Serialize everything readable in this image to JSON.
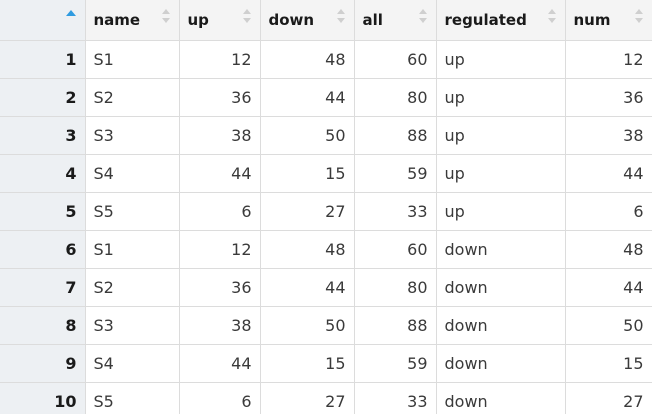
{
  "columns": [
    "name",
    "up",
    "down",
    "all",
    "regulated",
    "num"
  ],
  "sort": {
    "column": "row-index",
    "direction": "ascending"
  },
  "colors": {
    "sort_active": "#2f9be0",
    "header_bg": "#f4f4f4",
    "rownum_bg": "#edf0f3"
  },
  "rows": [
    {
      "idx": "1",
      "name": "S1",
      "up": "12",
      "down": "48",
      "all": "60",
      "regulated": "up",
      "num": "12"
    },
    {
      "idx": "2",
      "name": "S2",
      "up": "36",
      "down": "44",
      "all": "80",
      "regulated": "up",
      "num": "36"
    },
    {
      "idx": "3",
      "name": "S3",
      "up": "38",
      "down": "50",
      "all": "88",
      "regulated": "up",
      "num": "38"
    },
    {
      "idx": "4",
      "name": "S4",
      "up": "44",
      "down": "15",
      "all": "59",
      "regulated": "up",
      "num": "44"
    },
    {
      "idx": "5",
      "name": "S5",
      "up": "6",
      "down": "27",
      "all": "33",
      "regulated": "up",
      "num": "6"
    },
    {
      "idx": "6",
      "name": "S1",
      "up": "12",
      "down": "48",
      "all": "60",
      "regulated": "down",
      "num": "48"
    },
    {
      "idx": "7",
      "name": "S2",
      "up": "36",
      "down": "44",
      "all": "80",
      "regulated": "down",
      "num": "44"
    },
    {
      "idx": "8",
      "name": "S3",
      "up": "38",
      "down": "50",
      "all": "88",
      "regulated": "down",
      "num": "50"
    },
    {
      "idx": "9",
      "name": "S4",
      "up": "44",
      "down": "15",
      "all": "59",
      "regulated": "down",
      "num": "15"
    },
    {
      "idx": "10",
      "name": "S5",
      "up": "6",
      "down": "27",
      "all": "33",
      "regulated": "down",
      "num": "27"
    }
  ]
}
